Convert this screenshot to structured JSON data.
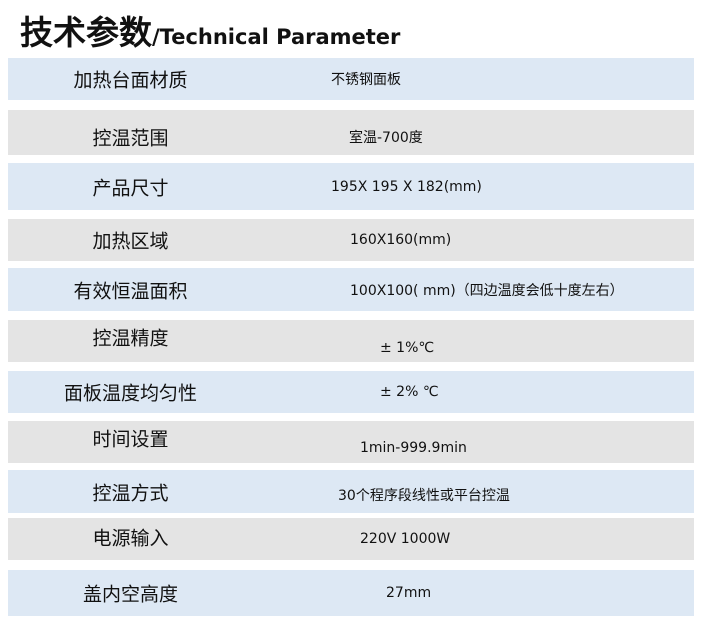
{
  "title": {
    "zh": "技术参数",
    "en": "/Technical Parameter"
  },
  "colors": {
    "row_blue": "#dde8f4",
    "row_gray": "#e4e4e4"
  },
  "rows": [
    {
      "label": "加热台面材质",
      "value": "不锈钢面板"
    },
    {
      "label": "控温范围",
      "value": "室温-700度"
    },
    {
      "label": "产品尺寸",
      "value": "195X 195 X 182(mm)"
    },
    {
      "label": "加热区域",
      "value": "160X160(mm)"
    },
    {
      "label": "有效恒温面积",
      "value": "100X100( mm)（四边温度会低十度左右）"
    },
    {
      "label": "控温精度",
      "value": "± 1%℃"
    },
    {
      "label": "面板温度均匀性",
      "value": "± 2% ℃"
    },
    {
      "label": "时间设置",
      "value": "1min-999.9min"
    },
    {
      "label": "控温方式",
      "value": "30个程序段线性或平台控温"
    },
    {
      "label": "电源输入",
      "value": "220V  1000W"
    },
    {
      "label": "盖内空高度",
      "value": "27mm"
    }
  ]
}
